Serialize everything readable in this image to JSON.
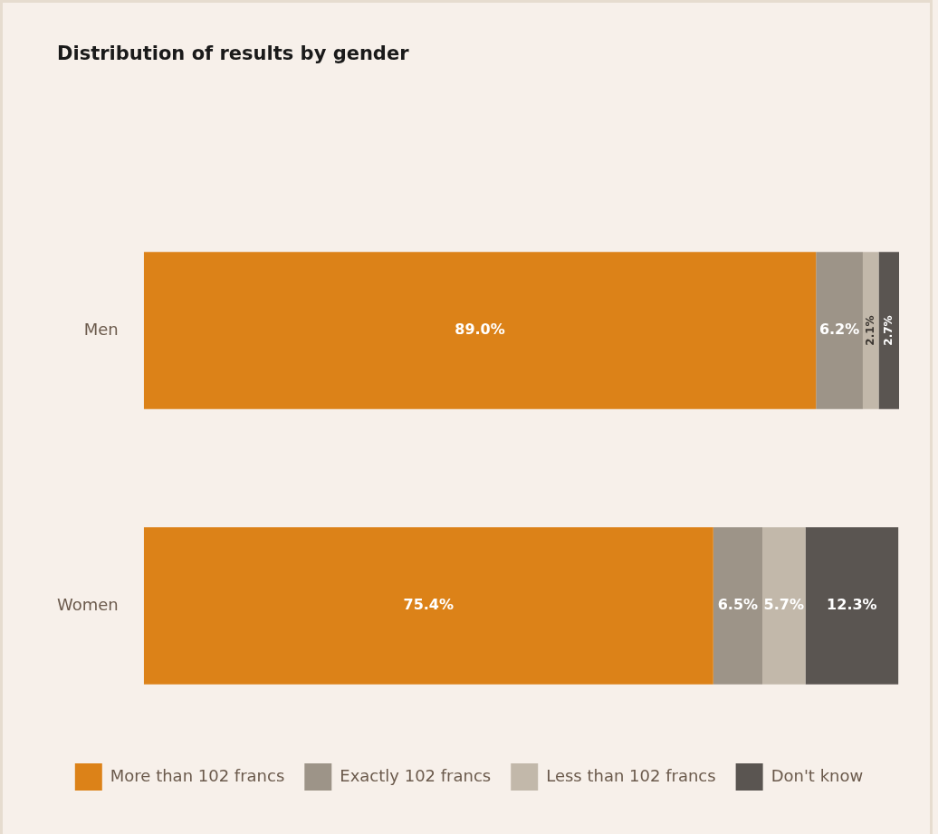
{
  "chart_data": {
    "type": "bar",
    "title": "Distribution of results by gender",
    "orientation": "horizontal",
    "stacked": true,
    "categories": [
      "Men",
      "Women"
    ],
    "legend": "bottom",
    "grid": false,
    "tick_labels": "y",
    "series": [
      {
        "name": "More than 102 francs",
        "color": "#dc8218",
        "values": [
          89.0,
          75.4
        ],
        "value_labels": [
          "89.0%",
          "75.4%"
        ]
      },
      {
        "name": "Exactly 102 francs",
        "color": "#9d9488",
        "values": [
          6.2,
          6.5
        ],
        "value_labels": [
          "6.2%",
          "6.5%"
        ]
      },
      {
        "name": "Less than 102 francs",
        "color": "#c2b8aa",
        "values": [
          2.1,
          5.7
        ],
        "value_labels": [
          "2.1%",
          "5.7%"
        ]
      },
      {
        "name": "Don't know",
        "color": "#5a5551",
        "values": [
          2.7,
          12.3
        ],
        "value_labels": [
          "2.7%",
          "12.3%"
        ]
      }
    ]
  }
}
